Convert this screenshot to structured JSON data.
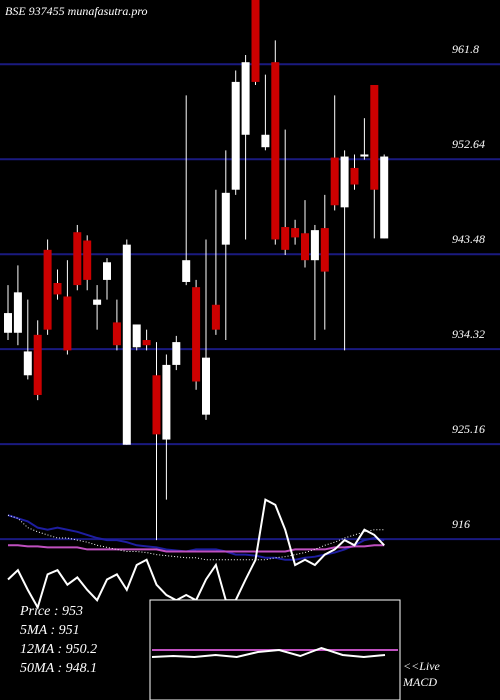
{
  "chart_data": [
    {
      "type": "candlestick",
      "title": "BSE 937455 munafasutra.pro",
      "open": [
        935.9,
        935.9,
        931.8,
        935.7,
        943.9,
        940.7,
        939.4,
        945.6,
        944.8,
        938.6,
        941.0,
        936.9,
        925.1,
        934.5,
        935.2,
        931.8,
        925.6,
        932.8,
        940.8,
        940.3,
        928.0,
        938.6,
        944.4,
        949.7,
        955.0,
        968.0,
        953.8,
        962.0,
        946.1,
        946.0,
        945.5,
        942.9,
        946.0,
        952.8,
        948.0,
        951.8,
        952.9,
        959.8,
        945.0
      ],
      "high": [
        940.5,
        942.4,
        939.1,
        937.1,
        944.9,
        942.0,
        942.9,
        946.3,
        945.3,
        940.5,
        943.1,
        939.1,
        944.9,
        936.7,
        936.2,
        935.0,
        933.8,
        935.6,
        958.8,
        941.0,
        944.9,
        949.7,
        953.5,
        961.2,
        962.7,
        968.0,
        960.8,
        964.1,
        955.5,
        946.8,
        948.7,
        946.3,
        949.2,
        958.8,
        953.5,
        953.1,
        956.6,
        959.8,
        953.1
      ],
      "low": [
        935.2,
        934.7,
        931.4,
        929.4,
        935.7,
        939.1,
        933.8,
        940.0,
        940.0,
        936.2,
        939.1,
        934.2,
        925.1,
        934.2,
        934.2,
        915.9,
        919.8,
        932.3,
        940.5,
        930.4,
        927.5,
        935.7,
        935.2,
        949.2,
        944.9,
        959.8,
        953.5,
        944.4,
        943.4,
        944.4,
        942.2,
        935.2,
        936.2,
        947.7,
        934.2,
        949.7,
        952.6,
        945.0,
        945.0
      ],
      "close": [
        937.8,
        939.8,
        934.1,
        929.9,
        936.2,
        939.6,
        934.2,
        940.5,
        941.0,
        939.1,
        942.7,
        934.7,
        944.4,
        936.7,
        934.7,
        926.1,
        932.8,
        935.0,
        942.9,
        931.2,
        933.5,
        936.2,
        949.4,
        960.1,
        962.0,
        960.1,
        955.0,
        944.9,
        943.9,
        945.1,
        942.9,
        945.8,
        941.8,
        948.2,
        952.9,
        950.2,
        953.1,
        949.7,
        952.9
      ],
      "up_color": "#ffffff",
      "down_color": "#cc0000",
      "series": [
        {
          "style": "solid",
          "color": "#1e1ea0",
          "values": [
            918.3,
            918.0,
            917.7,
            917.1,
            916.9,
            917.1,
            916.9,
            916.7,
            916.4,
            916.1,
            915.9,
            915.9,
            915.7,
            915.4,
            915.3,
            915.2,
            915.0,
            914.9,
            914.8,
            915.0,
            915.0,
            915.0,
            914.8,
            914.5,
            914.5,
            914.4,
            914.2,
            914.2,
            914.0,
            914.0,
            914.2,
            914.3,
            914.5,
            914.7,
            915.0,
            915.4,
            915.9,
            916.1,
            915.9
          ]
        },
        {
          "style": "solid",
          "color": "#c050c0",
          "values": [
            915.4,
            915.4,
            915.3,
            915.3,
            915.2,
            915.2,
            915.2,
            915.2,
            915.0,
            915.0,
            915.0,
            915.0,
            915.0,
            915.0,
            915.0,
            915.0,
            914.8,
            914.8,
            914.8,
            914.8,
            914.8,
            914.8,
            914.8,
            914.8,
            914.8,
            914.8,
            914.8,
            914.8,
            914.8,
            915.0,
            915.0,
            915.0,
            915.0,
            915.2,
            915.2,
            915.3,
            915.3,
            915.4,
            915.4
          ]
        },
        {
          "style": "dotted",
          "color": "#ffffff",
          "values": [
            918.3,
            918.0,
            917.1,
            916.7,
            916.4,
            916.1,
            916.1,
            915.9,
            915.7,
            915.4,
            915.2,
            915.0,
            914.8,
            914.8,
            914.7,
            914.5,
            914.4,
            914.3,
            914.2,
            914.2,
            914.0,
            914.0,
            914.0,
            914.0,
            914.0,
            914.0,
            914.0,
            914.2,
            914.3,
            914.5,
            914.7,
            915.0,
            915.4,
            915.7,
            916.1,
            916.4,
            916.7,
            916.9,
            916.9
          ]
        },
        {
          "style": "solid",
          "color": "#ffffff",
          "values": [
            912.1,
            913.0,
            911.1,
            909.4,
            912.6,
            913.0,
            911.6,
            912.3,
            911.1,
            910.1,
            912.1,
            912.6,
            911.1,
            913.5,
            914.0,
            911.6,
            910.6,
            910.1,
            910.6,
            910.1,
            912.1,
            913.5,
            910.1,
            910.1,
            912.1,
            914.0,
            919.8,
            919.3,
            916.9,
            913.5,
            914.0,
            913.5,
            914.5,
            915.0,
            915.9,
            915.4,
            916.9,
            916.4,
            915.4
          ]
        }
      ],
      "ylim": [
        908,
        968
      ],
      "yticks": [
        916,
        925.16,
        934.32,
        943.48,
        952.64,
        961.8
      ],
      "grid_color": "#1a1a80",
      "info": [
        "Price : 953",
        "5MA : 951",
        "12MA : 950.2",
        "50MA : 948.1"
      ]
    },
    {
      "type": "inset",
      "label": [
        "<<Live",
        "MACD"
      ],
      "ylim": [
        0,
        100
      ],
      "series": [
        {
          "color": "#c050c0",
          "values": [
            50,
            50
          ]
        },
        {
          "color": "#ffffff",
          "values": [
            43,
            44,
            43,
            45,
            43,
            48,
            50,
            44,
            52,
            45,
            43,
            45
          ]
        }
      ]
    }
  ]
}
